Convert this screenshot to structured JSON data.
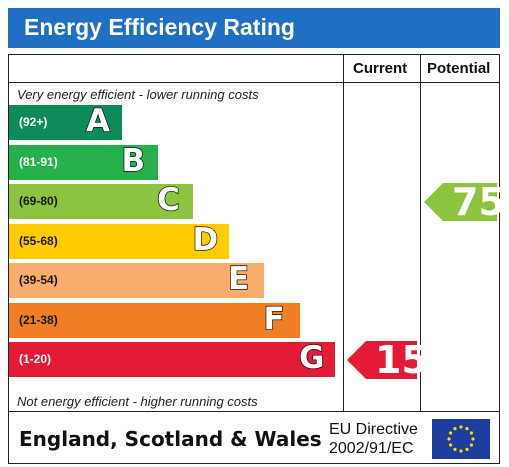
{
  "header": {
    "title": "Energy Efficiency Rating"
  },
  "columns": {
    "current": "Current",
    "potential": "Potential"
  },
  "notes": {
    "top": "Very energy efficient - lower running costs",
    "bottom": "Not energy efficient - higher running costs"
  },
  "chart_data": {
    "type": "bar",
    "categories": [
      "A",
      "B",
      "C",
      "D",
      "E",
      "F",
      "G"
    ],
    "ranges": [
      "(92+)",
      "(81-91)",
      "(69-80)",
      "(55-68)",
      "(39-54)",
      "(21-38)",
      "(1-20)"
    ],
    "colors": [
      "#0f8a5b",
      "#25b04b",
      "#8cc43f",
      "#ffcc00",
      "#f9ad6c",
      "#f07e25",
      "#e41b36"
    ],
    "current": {
      "value": 15,
      "band": "G",
      "color": "#e41b36"
    },
    "potential": {
      "value": 75,
      "band": "C",
      "color": "#8cc43f"
    }
  },
  "footer": {
    "country": "England, Scotland & Wales",
    "directive_line1": "EU Directive",
    "directive_line2": "2002/91/EC"
  },
  "icons": {
    "flag": "eu-flag-icon"
  }
}
